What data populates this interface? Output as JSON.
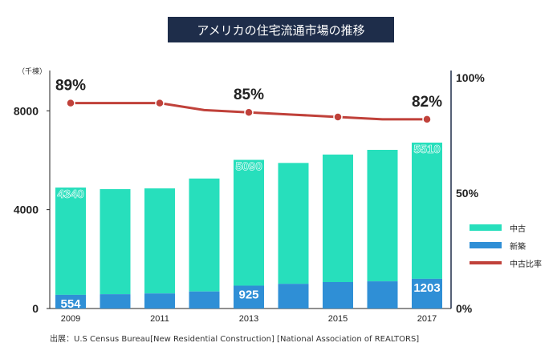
{
  "title": "アメリカの住宅流通市場の推移",
  "source": "出展：U.S Census Bureau[New Residential Construction] [National Association of REALTORS]",
  "colors": {
    "used": "#27dfbc",
    "new": "#2f8fd6",
    "ratio": "#c0413a",
    "title_bg": "#1e2d4a"
  },
  "chart_data": {
    "type": "bar",
    "categories": [
      "2009",
      "2010",
      "2011",
      "2012",
      "2013",
      "2014",
      "2015",
      "2016",
      "2017"
    ],
    "x_tick_labels": [
      "2009",
      "",
      "2011",
      "",
      "2013",
      "",
      "2015",
      "",
      "2017"
    ],
    "series": [
      {
        "name": "中古",
        "values": [
          4340,
          4250,
          4250,
          4570,
          5090,
          4890,
          5160,
          5320,
          5510
        ],
        "stacked": true
      },
      {
        "name": "新築",
        "values": [
          554,
          580,
          610,
          690,
          925,
          1000,
          1070,
          1100,
          1203
        ],
        "stacked": true
      },
      {
        "name": "中古比率",
        "type": "line",
        "axis": "right",
        "values": [
          89,
          89,
          89,
          86,
          85,
          84,
          83,
          82,
          82
        ]
      }
    ],
    "y_left": {
      "unit": "（千棟）",
      "ticks": [
        0,
        4000,
        8000
      ],
      "ylim": [
        0,
        9500
      ]
    },
    "y_right": {
      "ticks": [
        "0%",
        "50%",
        "100%"
      ],
      "ylim": [
        0,
        100
      ]
    },
    "data_labels": [
      {
        "index": 0,
        "series": "中古",
        "text": "4340"
      },
      {
        "index": 4,
        "series": "中古",
        "text": "5090"
      },
      {
        "index": 8,
        "series": "中古",
        "text": "5510"
      },
      {
        "index": 0,
        "series": "新築",
        "text": "554"
      },
      {
        "index": 4,
        "series": "新築",
        "text": "925"
      },
      {
        "index": 8,
        "series": "新築",
        "text": "1203"
      },
      {
        "index": 0,
        "series": "中古比率",
        "text": "89%"
      },
      {
        "index": 4,
        "series": "中古比率",
        "text": "85%"
      },
      {
        "index": 8,
        "series": "中古比率",
        "text": "82%"
      }
    ],
    "legend": [
      {
        "label": "中古",
        "color": "#27dfbc"
      },
      {
        "label": "新築",
        "color": "#2f8fd6"
      },
      {
        "label": "中古比率",
        "color": "#c0413a"
      }
    ],
    "legend_position": "right"
  }
}
